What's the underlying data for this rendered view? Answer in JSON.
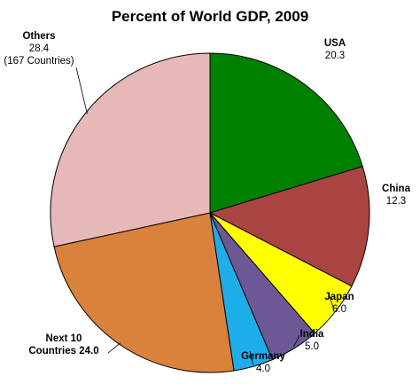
{
  "chart_data": {
    "type": "pie",
    "title": "Percent of  World GDP, 2009",
    "slices": [
      {
        "label": "USA",
        "value": 20.3,
        "value_text": "20.3",
        "color": "#008000"
      },
      {
        "label": "China",
        "value": 12.3,
        "value_text": "12.3",
        "color": "#A94442"
      },
      {
        "label": "Japan",
        "value": 6.0,
        "value_text": "6.0",
        "color": "#FFFF00"
      },
      {
        "label": "India",
        "value": 5.0,
        "value_text": "5.0",
        "color": "#6C5894"
      },
      {
        "label": "Germany",
        "value": 4.0,
        "value_text": "4.0",
        "color": "#1EAEEA"
      },
      {
        "label": "Next 10",
        "label2": "Countries",
        "value": 24.0,
        "value_text": "24.0",
        "color": "#D9823B"
      },
      {
        "label": "Others",
        "value": 28.4,
        "value_text": "28.4",
        "note": "(167 Countries)",
        "color": "#E6B9B8"
      }
    ],
    "start_angle": "12 o'clock",
    "direction": "clockwise",
    "legend": "none"
  }
}
